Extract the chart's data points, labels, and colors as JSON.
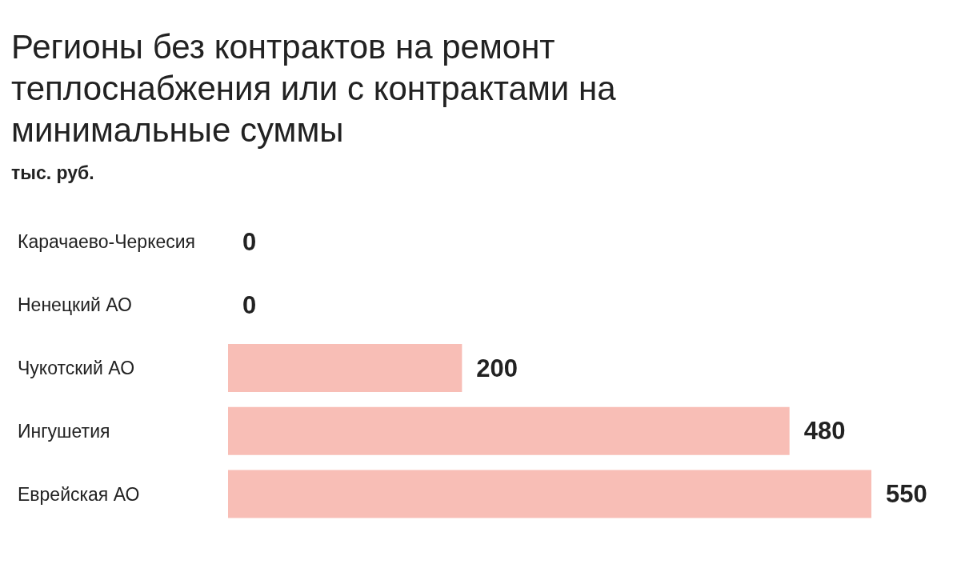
{
  "chart_data": {
    "type": "bar",
    "orientation": "horizontal",
    "title": "Регионы без контрактов на ремонт теплоснабжения или с контрактами на минимальные суммы",
    "subtitle": "тыс. руб.",
    "categories": [
      "Карачаево-Черкесия",
      "Ненецкий АО",
      "Чукотский АО",
      "Ингушетия",
      "Еврейская АО"
    ],
    "values": [
      0,
      0,
      200,
      480,
      550
    ],
    "color": "#f8beb6",
    "data_labels": true
  }
}
